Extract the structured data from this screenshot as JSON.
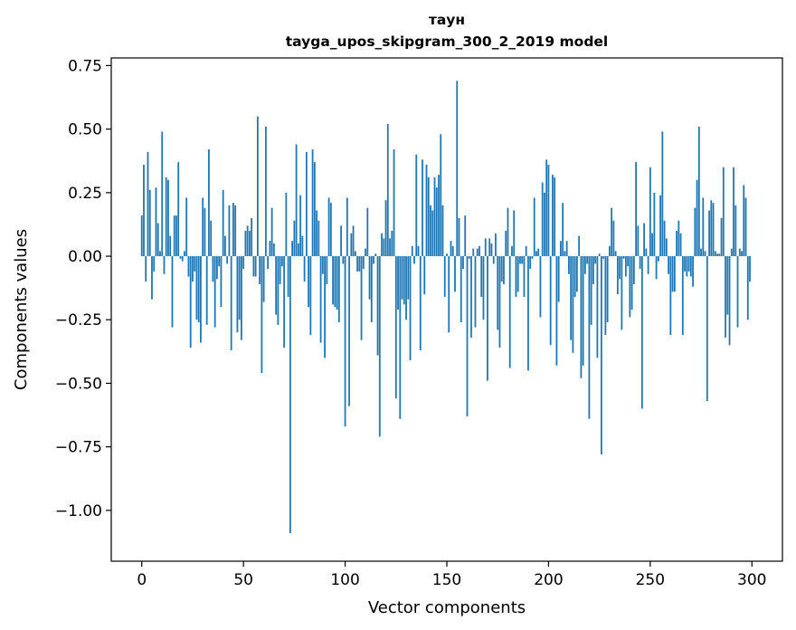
{
  "chart_data": {
    "type": "bar",
    "title": "таун",
    "subtitle": "tayga_upos_skipgram_300_2_2019 model",
    "xlabel": "Vector components",
    "ylabel": "Components values",
    "xlim": [
      -15,
      315
    ],
    "ylim": [
      -1.2,
      0.78
    ],
    "xticks": [
      0,
      50,
      100,
      150,
      200,
      250,
      300
    ],
    "xtick_labels": [
      "0",
      "50",
      "100",
      "150",
      "200",
      "250",
      "300"
    ],
    "yticks": [
      0.75,
      0.5,
      0.25,
      0.0,
      -0.25,
      -0.5,
      -0.75,
      -1.0
    ],
    "ytick_labels": [
      "0.75",
      "0.50",
      "0.25",
      "0.00",
      "−0.25",
      "−0.50",
      "−0.75",
      "−1.00"
    ],
    "bar_color": "#1f77b4",
    "grid": false,
    "legend": "none",
    "x": "0..299 (component index)",
    "values": [
      0.16,
      0.36,
      -0.1,
      0.41,
      0.26,
      -0.17,
      -0.06,
      0.27,
      0.13,
      0.02,
      0.49,
      -0.07,
      0.31,
      0.3,
      0.08,
      -0.28,
      0.16,
      0.16,
      0.37,
      -0.01,
      -0.02,
      0.02,
      0.23,
      -0.08,
      -0.36,
      -0.1,
      -0.06,
      -0.25,
      -0.26,
      -0.34,
      0.23,
      0.19,
      -0.27,
      0.42,
      0.14,
      -0.1,
      -0.28,
      -0.09,
      -0.04,
      -0.2,
      0.26,
      0.08,
      -0.03,
      0.2,
      -0.37,
      0.21,
      0.2,
      -0.3,
      -0.25,
      -0.33,
      -0.05,
      0.1,
      0.12,
      0.1,
      0.15,
      -0.08,
      -0.08,
      0.55,
      -0.11,
      -0.46,
      -0.18,
      0.51,
      -0.05,
      0.06,
      0.19,
      0.05,
      -0.23,
      -0.27,
      -0.11,
      -0.04,
      -0.36,
      0.25,
      -0.16,
      -1.09,
      0.06,
      0.14,
      0.44,
      0.05,
      0.24,
      0.08,
      -0.1,
      0.41,
      -0.2,
      -0.31,
      0.42,
      0.37,
      0.18,
      0.14,
      -0.34,
      -0.07,
      -0.4,
      -0.11,
      0.23,
      0.21,
      -0.19,
      -0.2,
      -0.21,
      -0.26,
      0.12,
      -0.03,
      -0.67,
      0.23,
      -0.59,
      0.09,
      0.12,
      0.02,
      -0.06,
      -0.06,
      -0.33,
      -0.05,
      0.03,
      0.19,
      -0.17,
      -0.26,
      -0.03,
      0.01,
      -0.39,
      -0.71,
      0.09,
      0.07,
      0.22,
      0.52,
      0.07,
      0.1,
      0.42,
      -0.56,
      -0.21,
      -0.64,
      -0.17,
      -0.19,
      -0.25,
      -0.17,
      -0.41,
      0.04,
      -0.03,
      0.4,
      0.04,
      -0.37,
      0.38,
      -0.15,
      0.36,
      0.31,
      0.2,
      0.18,
      0.31,
      0.27,
      0.32,
      0.48,
      0.2,
      -0.16,
      0.01,
      -0.3,
      0.06,
      0.04,
      -0.14,
      0.69,
      0.15,
      -0.26,
      -0.05,
      0.16,
      -0.63,
      -0.01,
      -0.32,
      0.03,
      -0.28,
      0.03,
      0.04,
      -0.16,
      -0.25,
      0.07,
      -0.49,
      0.07,
      0.05,
      -0.03,
      0.09,
      -0.29,
      -0.36,
      -0.1,
      -0.11,
      0.1,
      0.19,
      -0.44,
      0.04,
      0.18,
      -0.16,
      -0.14,
      -0.03,
      -0.03,
      -0.16,
      0.04,
      -0.45,
      -0.05,
      -0.01,
      0.23,
      0.02,
      0.03,
      -0.24,
      0.29,
      0.25,
      0.38,
      0.36,
      -0.35,
      0.32,
      0.31,
      -0.43,
      -0.18,
      0.06,
      0.21,
      0.02,
      0.06,
      -0.07,
      -0.33,
      -0.38,
      -0.16,
      -0.14,
      0.08,
      -0.48,
      -0.43,
      -0.07,
      -0.03,
      -0.64,
      -0.27,
      -0.11,
      -0.03,
      -0.4,
      0.01,
      -0.78,
      -0.01,
      -0.31,
      -0.26,
      0.04,
      0.19,
      0.14,
      0.02,
      -0.15,
      -0.09,
      -0.29,
      -0.01,
      -0.08,
      -0.04,
      -0.24,
      -0.21,
      -0.11,
      0.37,
      0.12,
      -0.05,
      -0.6,
      0.13,
      0.03,
      -0.07,
      0.35,
      0.09,
      0.25,
      -0.09,
      -0.02,
      0.24,
      0.49,
      0.14,
      0.07,
      -0.07,
      -0.31,
      -0.14,
      -0.14,
      0.1,
      0.14,
      0.09,
      -0.31,
      -0.06,
      -0.08,
      -0.06,
      -0.08,
      -0.12,
      0.19,
      0.3,
      0.51,
      0.03,
      0.23,
      0.02,
      -0.57,
      0.18,
      0.22,
      0.21,
      0.02,
      0.01,
      0.01,
      0.15,
      0.35,
      -0.32,
      -0.23,
      -0.35,
      0.03,
      0.35,
      0.2,
      -0.28,
      0.03,
      0.02,
      0.28,
      0.23,
      -0.25,
      -0.1
    ]
  }
}
